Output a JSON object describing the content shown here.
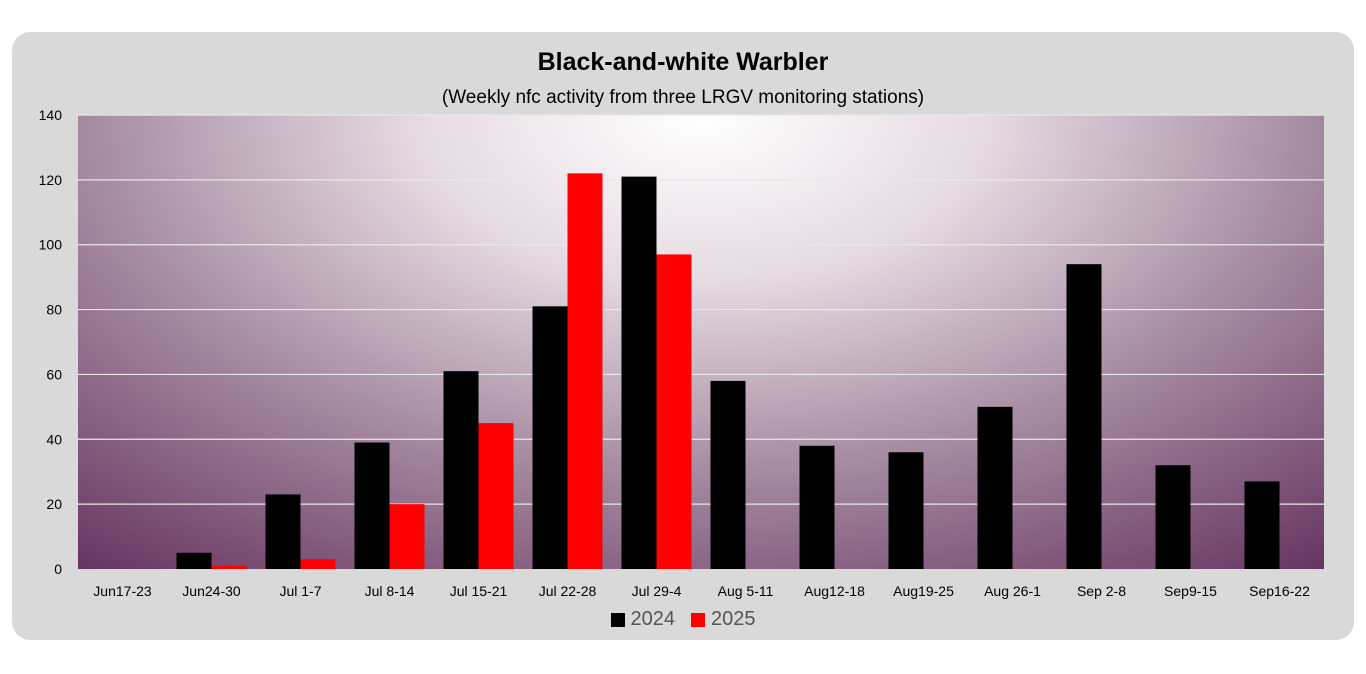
{
  "chart_data": {
    "type": "bar",
    "title": "Black-and-white Warbler",
    "subtitle": "(Weekly nfc activity from three LRGV monitoring stations)",
    "categories": [
      "Jun17-23",
      "Jun24-30",
      "Jul 1-7",
      "Jul 8-14",
      "Jul 15-21",
      "Jul 22-28",
      "Jul 29-4",
      "Aug 5-11",
      "Aug12-18",
      "Aug19-25",
      "Aug 26-1",
      "Sep 2-8",
      "Sep9-15",
      "Sep16-22"
    ],
    "series": [
      {
        "name": "2024",
        "color": "#000000",
        "values": [
          0,
          5,
          23,
          39,
          61,
          81,
          121,
          58,
          38,
          36,
          50,
          94,
          32,
          27
        ]
      },
      {
        "name": "2025",
        "color": "#ff0000",
        "values": [
          0,
          1,
          3,
          20,
          45,
          122,
          97,
          null,
          null,
          null,
          null,
          null,
          null,
          null
        ]
      }
    ],
    "ylim": [
      0,
      140
    ],
    "yticks": [
      0,
      20,
      40,
      60,
      80,
      100,
      120,
      140
    ],
    "grid": true,
    "legend_position": "bottom"
  }
}
